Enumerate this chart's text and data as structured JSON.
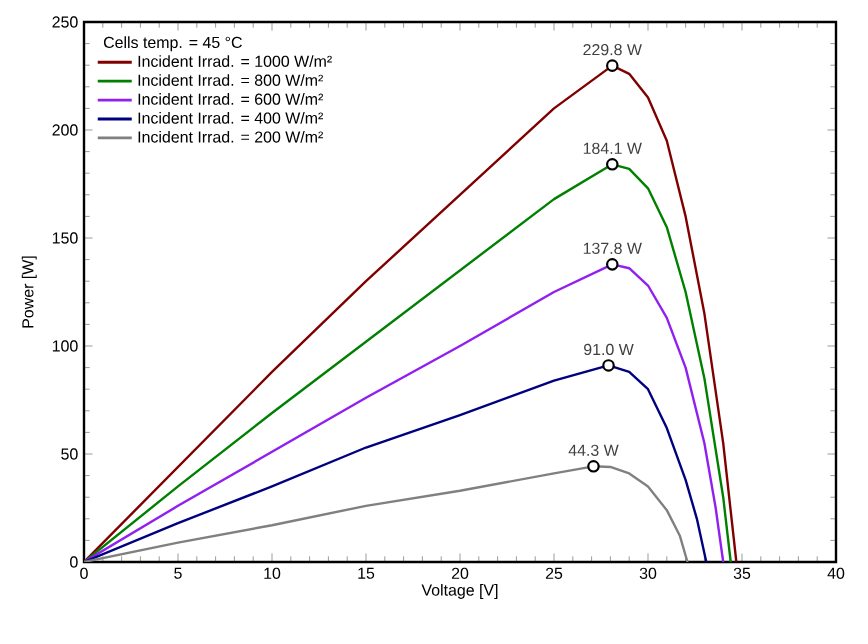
{
  "chart_data": {
    "type": "line",
    "xlabel": "Voltage [V]",
    "ylabel": "Power [W]",
    "legend_title": "Cells temp. = 45 °C",
    "legend": "top left",
    "grid": false,
    "marker": "none",
    "line_style": "solid",
    "xlim": [
      0,
      40
    ],
    "xticks": [
      0,
      5,
      10,
      15,
      20,
      25,
      30,
      35,
      40
    ],
    "ylim": [
      0,
      250
    ],
    "yticks": [
      0,
      50,
      100,
      150,
      200,
      250
    ],
    "series": [
      {
        "name": "Incident Irrad. = 1000 W/m²",
        "color": "#800000",
        "x": [
          0,
          5,
          10,
          15,
          20,
          25,
          28.1,
          29,
          30,
          31,
          32,
          33,
          34,
          34.7
        ],
        "values": [
          0,
          44,
          88,
          130,
          170,
          210,
          229.8,
          226,
          215,
          195,
          160,
          115,
          55,
          0
        ]
      },
      {
        "name": "Incident Irrad. = 800 W/m²",
        "color": "#008000",
        "x": [
          0,
          5,
          10,
          15,
          20,
          25,
          28.1,
          29,
          30,
          31,
          32,
          33,
          34,
          34.4
        ],
        "values": [
          0,
          35,
          69,
          102,
          135,
          168,
          184.1,
          182,
          173,
          155,
          125,
          85,
          30,
          0
        ]
      },
      {
        "name": "Incident Irrad. = 600 W/m²",
        "color": "#9020f0",
        "x": [
          0,
          5,
          10,
          15,
          20,
          25,
          28.1,
          29,
          30,
          31,
          32,
          33,
          33.6,
          34
        ],
        "values": [
          0,
          26,
          51,
          76,
          100,
          125,
          137.8,
          136,
          128,
          113,
          90,
          55,
          25,
          0
        ]
      },
      {
        "name": "Incident Irrad. = 400 W/m²",
        "color": "#000080",
        "x": [
          0,
          5,
          10,
          15,
          20,
          25,
          27.9,
          29,
          30,
          31,
          32,
          32.6,
          33.1
        ],
        "values": [
          0,
          18,
          35,
          53,
          68,
          84,
          91.0,
          88,
          80,
          62,
          38,
          20,
          0
        ]
      },
      {
        "name": "Incident Irrad. = 200 W/m²",
        "color": "#808080",
        "x": [
          0,
          5,
          10,
          15,
          20,
          25,
          27.1,
          28,
          29,
          30,
          31,
          31.7,
          32.1
        ],
        "values": [
          0,
          9,
          17,
          26,
          33,
          41,
          44.3,
          44,
          41,
          35,
          24,
          12,
          0
        ]
      },
      {
        "type": "scatter",
        "color": "#000000",
        "marker": "circle",
        "x": [
          28.1,
          28.1,
          28.1,
          27.9,
          27.1
        ],
        "values": [
          229.8,
          184.1,
          137.8,
          91.0,
          44.3
        ],
        "value_labels": [
          "229.8 W",
          "184.1 W",
          "137.8 W",
          "91.0 W",
          "44.3 W"
        ]
      }
    ]
  }
}
